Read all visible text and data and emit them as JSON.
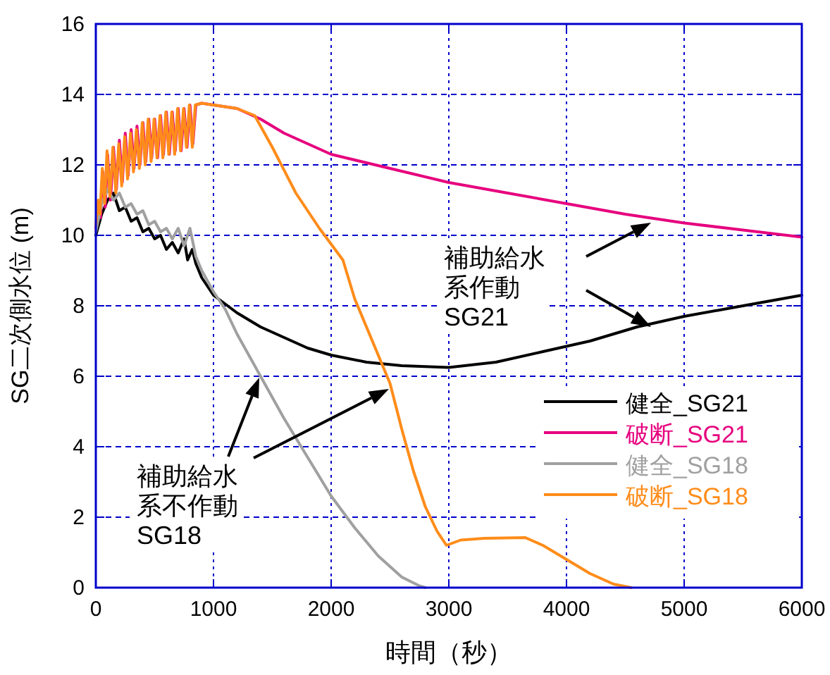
{
  "chart_data": {
    "type": "line",
    "xlabel": "時間（秒）",
    "ylabel": "SG二次側水位 (m)",
    "xlim": [
      0,
      6000
    ],
    "ylim": [
      0,
      16
    ],
    "xticks": [
      0,
      1000,
      2000,
      3000,
      4000,
      5000,
      6000
    ],
    "yticks": [
      0,
      2,
      4,
      6,
      8,
      10,
      12,
      14,
      16
    ],
    "grid": true,
    "legend": "bottom right",
    "line_style": "solid",
    "annotations": [
      "補助給水",
      "系作動",
      "SG21",
      "補助給水",
      "系不作動",
      "SG18"
    ],
    "series": [
      {
        "name": "健全_SG21",
        "color": "#000000",
        "x": [
          0,
          50,
          100,
          150,
          200,
          250,
          300,
          350,
          400,
          450,
          500,
          550,
          600,
          650,
          700,
          750,
          780,
          820,
          850,
          900,
          1000,
          1200,
          1400,
          1600,
          1800,
          2000,
          2300,
          2600,
          3000,
          3400,
          3800,
          4200,
          4600,
          5000,
          5500,
          6000
        ],
        "values": [
          10.0,
          10.6,
          11.0,
          11.2,
          10.7,
          10.8,
          10.4,
          10.5,
          10.1,
          10.2,
          9.9,
          10.0,
          9.6,
          9.8,
          9.5,
          9.9,
          9.3,
          9.6,
          9.2,
          8.8,
          8.3,
          7.8,
          7.4,
          7.1,
          6.8,
          6.6,
          6.4,
          6.3,
          6.25,
          6.4,
          6.7,
          7.0,
          7.4,
          7.7,
          8.0,
          8.3
        ]
      },
      {
        "name": "破断_SG21",
        "color": "#e6007e",
        "x": [
          0,
          25,
          40,
          60,
          80,
          100,
          125,
          150,
          175,
          200,
          225,
          250,
          275,
          300,
          325,
          350,
          375,
          400,
          425,
          450,
          475,
          500,
          525,
          550,
          575,
          600,
          625,
          650,
          675,
          700,
          725,
          750,
          775,
          800,
          825,
          850,
          900,
          1000,
          1200,
          1400,
          1600,
          2000,
          2500,
          3000,
          3500,
          4000,
          4500,
          5000,
          5500,
          6000
        ],
        "values": [
          10.2,
          10.9,
          10.5,
          11.8,
          10.8,
          12.3,
          11.0,
          12.5,
          11.3,
          12.7,
          11.5,
          12.9,
          11.7,
          13.0,
          11.9,
          13.1,
          12.0,
          13.2,
          12.1,
          13.3,
          12.2,
          13.3,
          12.2,
          13.4,
          12.3,
          13.5,
          12.3,
          13.5,
          12.4,
          13.6,
          12.4,
          13.6,
          12.5,
          13.7,
          12.6,
          13.7,
          13.75,
          13.7,
          13.6,
          13.3,
          12.9,
          12.3,
          11.9,
          11.5,
          11.2,
          10.9,
          10.6,
          10.35,
          10.15,
          9.95
        ]
      },
      {
        "name": "健全_SG18",
        "color": "#a0a0a0",
        "x": [
          0,
          50,
          100,
          150,
          200,
          250,
          300,
          350,
          400,
          450,
          500,
          550,
          600,
          650,
          700,
          750,
          800,
          850,
          900,
          1000,
          1100,
          1200,
          1400,
          1600,
          1800,
          2000,
          2200,
          2400,
          2600,
          2750,
          2800
        ],
        "values": [
          10.1,
          10.9,
          11.3,
          11.0,
          11.2,
          10.8,
          10.9,
          10.6,
          10.7,
          10.3,
          10.4,
          10.1,
          10.2,
          9.9,
          10.2,
          9.7,
          10.2,
          9.4,
          9.0,
          8.4,
          7.9,
          7.2,
          6.0,
          4.8,
          3.7,
          2.6,
          1.7,
          0.9,
          0.3,
          0.05,
          0
        ]
      },
      {
        "name": "破断_SG18",
        "color": "#ff8c1a",
        "x": [
          0,
          20,
          35,
          55,
          75,
          95,
          120,
          145,
          170,
          195,
          220,
          245,
          270,
          295,
          320,
          345,
          370,
          395,
          420,
          445,
          470,
          495,
          520,
          545,
          570,
          595,
          620,
          645,
          670,
          695,
          720,
          745,
          770,
          795,
          820,
          845,
          900,
          1000,
          1200,
          1350,
          1500,
          1700,
          1900,
          2100,
          2200,
          2400,
          2500,
          2600,
          2700,
          2800,
          2900,
          2980,
          3100,
          3300,
          3650,
          3800,
          4000,
          4200,
          4400,
          4550
        ],
        "values": [
          10.3,
          11.0,
          10.6,
          11.9,
          10.9,
          12.4,
          11.1,
          12.5,
          11.2,
          12.6,
          11.4,
          12.8,
          11.6,
          12.9,
          11.8,
          13.0,
          11.9,
          13.2,
          12.0,
          13.3,
          12.1,
          13.3,
          12.2,
          13.4,
          12.2,
          13.5,
          12.3,
          13.5,
          12.3,
          13.6,
          12.4,
          13.6,
          12.5,
          13.7,
          12.5,
          13.7,
          13.75,
          13.7,
          13.6,
          13.4,
          12.5,
          11.2,
          10.2,
          9.3,
          8.2,
          6.6,
          5.8,
          4.5,
          3.3,
          2.3,
          1.6,
          1.2,
          1.35,
          1.4,
          1.42,
          1.2,
          0.8,
          0.4,
          0.1,
          0
        ]
      }
    ]
  }
}
